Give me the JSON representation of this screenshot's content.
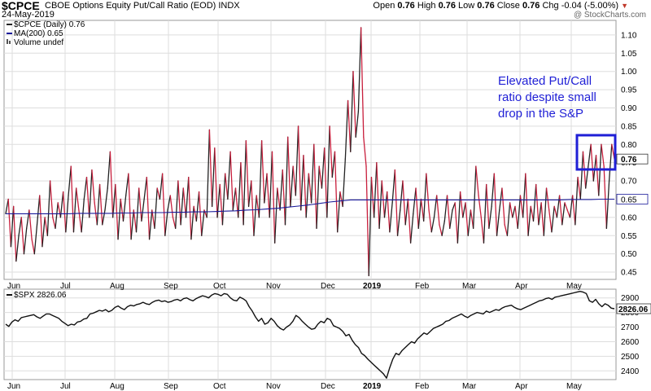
{
  "header": {
    "symbol": "$CPCE",
    "name": "CBOE Options Equity Put/Call Ratio (EOD)",
    "exchange": "INDX",
    "date": "24-May-2019",
    "open_label": "Open",
    "open": "0.76",
    "high_label": "High",
    "high": "0.76",
    "low_label": "Low",
    "low": "0.76",
    "close_label": "Close",
    "close": "0.76",
    "chg_label": "Chg",
    "chg": "-0.04 (-5.00%)",
    "watermark": "@ StockCharts.com"
  },
  "colors": {
    "up": "#222222",
    "down": "#c81e3c",
    "ma": "#1a1a9a",
    "spx": "#111111",
    "annotation": "#1f1fd6",
    "grid": "#dddddd"
  },
  "chart_data": [
    {
      "type": "line",
      "legend": [
        "$CPCE (Daily) 0.76",
        "MA(200) 0.65",
        "Volume undef"
      ],
      "x_ticks": [
        "Jun",
        "Jul",
        "Aug",
        "Sep",
        "Oct",
        "Nov",
        "Dec",
        "2019",
        "Feb",
        "Mar",
        "Apr",
        "May"
      ],
      "y_ticks": [
        "0.45",
        "0.50",
        "0.55",
        "0.60",
        "0.65",
        "0.70",
        "0.75",
        "0.80",
        "0.85",
        "0.90",
        "0.95",
        "1.00",
        "1.05",
        "1.10"
      ],
      "ylim": [
        0.43,
        1.14
      ],
      "last_label": "0.76",
      "ma_label": "0.65",
      "annotation": [
        "Elevated Put/Call",
        "ratio despite small",
        "drop in the S&P"
      ],
      "series": [
        {
          "values": [
            0.61,
            0.65,
            0.52,
            0.63,
            0.48,
            0.55,
            0.6,
            0.5,
            0.57,
            0.62,
            0.54,
            0.5,
            0.58,
            0.66,
            0.52,
            0.6,
            0.55,
            0.7,
            0.6,
            0.57,
            0.64,
            0.6,
            0.67,
            0.56,
            0.66,
            0.74,
            0.56,
            0.68,
            0.62,
            0.56,
            0.65,
            0.71,
            0.6,
            0.73,
            0.64,
            0.58,
            0.69,
            0.58,
            0.62,
            0.68,
            0.78,
            0.6,
            0.69,
            0.54,
            0.65,
            0.59,
            0.66,
            0.72,
            0.54,
            0.62,
            0.56,
            0.68,
            0.59,
            0.65,
            0.71,
            0.54,
            0.62,
            0.57,
            0.68,
            0.65,
            0.72,
            0.55,
            0.62,
            0.66,
            0.6,
            0.57,
            0.7,
            0.58,
            0.68,
            0.6,
            0.71,
            0.54,
            0.63,
            0.59,
            0.67,
            0.55,
            0.62,
            0.6,
            0.84,
            0.63,
            0.79,
            0.6,
            0.69,
            0.58,
            0.72,
            0.65,
            0.78,
            0.62,
            0.68,
            0.6,
            0.75,
            0.58,
            0.81,
            0.63,
            0.7,
            0.55,
            0.66,
            0.6,
            0.81,
            0.64,
            0.72,
            0.6,
            0.78,
            0.53,
            0.68,
            0.62,
            0.73,
            0.58,
            0.82,
            0.63,
            0.74,
            0.66,
            0.85,
            0.62,
            0.77,
            0.6,
            0.72,
            0.64,
            0.8,
            0.57,
            0.74,
            0.68,
            0.79,
            0.6,
            0.85,
            0.71,
            0.78,
            0.56,
            0.67,
            0.63,
            0.76,
            0.92,
            0.78,
            1.0,
            0.82,
            0.89,
            1.12,
            0.82,
            0.74,
            0.44,
            0.71,
            0.6,
            0.75,
            0.57,
            0.7,
            0.6,
            0.67,
            0.56,
            0.64,
            0.73,
            0.55,
            0.62,
            0.7,
            0.58,
            0.65,
            0.53,
            0.61,
            0.68,
            0.57,
            0.65,
            0.59,
            0.72,
            0.62,
            0.56,
            0.6,
            0.66,
            0.58,
            0.55,
            0.59,
            0.66,
            0.57,
            0.62,
            0.64,
            0.53,
            0.67,
            0.6,
            0.64,
            0.55,
            0.62,
            0.57,
            0.74,
            0.66,
            0.6,
            0.53,
            0.69,
            0.57,
            0.63,
            0.72,
            0.55,
            0.62,
            0.68,
            0.58,
            0.55,
            0.64,
            0.6,
            0.63,
            0.57,
            0.66,
            0.6,
            0.72,
            0.55,
            0.63,
            0.59,
            0.69,
            0.58,
            0.64,
            0.55,
            0.68,
            0.62,
            0.56,
            0.63,
            0.6,
            0.66,
            0.58,
            0.64,
            0.62,
            0.6,
            0.66,
            0.58,
            0.71,
            0.65,
            0.78,
            0.68,
            0.74,
            0.8,
            0.7,
            0.77,
            0.66,
            0.8,
            0.74,
            0.57,
            0.7,
            0.8,
            0.76
          ],
          "ma_values": [
            0.61,
            0.61,
            0.61,
            0.61,
            0.61,
            0.61,
            0.61,
            0.611,
            0.611,
            0.611,
            0.611,
            0.612,
            0.612,
            0.613,
            0.613,
            0.613,
            0.614,
            0.614,
            0.615,
            0.615,
            0.616,
            0.617,
            0.618,
            0.62,
            0.621,
            0.623,
            0.625,
            0.628,
            0.631,
            0.634,
            0.638,
            0.642,
            0.645,
            0.648,
            0.648,
            0.648,
            0.648,
            0.648,
            0.648,
            0.648,
            0.648,
            0.648,
            0.648,
            0.648,
            0.648,
            0.648,
            0.648,
            0.648,
            0.648,
            0.648,
            0.648,
            0.648,
            0.648,
            0.648,
            0.649,
            0.649,
            0.649,
            0.65,
            0.65,
            0.65,
            0.65
          ],
          "ma_step": 4
        }
      ]
    },
    {
      "type": "line",
      "legend": [
        "$SPX 2826.06"
      ],
      "x_ticks": [
        "Jun",
        "Jul",
        "Aug",
        "Sep",
        "Oct",
        "Nov",
        "Dec",
        "2019",
        "Feb",
        "Mar",
        "Apr",
        "May"
      ],
      "y_ticks": [
        "2400",
        "2500",
        "2600",
        "2700",
        "2800",
        "2900"
      ],
      "ylim": [
        2340,
        2960
      ],
      "last_label": "2826.06",
      "series": [
        {
          "values": [
            2720,
            2705,
            2735,
            2750,
            2740,
            2765,
            2770,
            2775,
            2780,
            2785,
            2770,
            2760,
            2775,
            2790,
            2790,
            2780,
            2770,
            2760,
            2740,
            2725,
            2710,
            2720,
            2715,
            2735,
            2740,
            2755,
            2760,
            2790,
            2795,
            2805,
            2815,
            2810,
            2820,
            2805,
            2815,
            2835,
            2845,
            2830,
            2820,
            2840,
            2850,
            2845,
            2855,
            2860,
            2870,
            2860,
            2855,
            2870,
            2880,
            2885,
            2875,
            2880,
            2870,
            2875,
            2885,
            2890,
            2880,
            2895,
            2900,
            2888,
            2880,
            2895,
            2905,
            2915,
            2910,
            2900,
            2920,
            2930,
            2925,
            2915,
            2930,
            2925,
            2900,
            2885,
            2880,
            2905,
            2895,
            2880,
            2840,
            2810,
            2770,
            2740,
            2760,
            2720,
            2730,
            2760,
            2740,
            2710,
            2690,
            2680,
            2700,
            2715,
            2740,
            2780,
            2765,
            2740,
            2720,
            2700,
            2685,
            2690,
            2720,
            2740,
            2730,
            2760,
            2750,
            2710,
            2700,
            2690,
            2670,
            2640,
            2650,
            2610,
            2580,
            2560,
            2520,
            2505,
            2480,
            2460,
            2440,
            2420,
            2400,
            2380,
            2350,
            2420,
            2480,
            2520,
            2510,
            2540,
            2560,
            2580,
            2600,
            2590,
            2620,
            2640,
            2660,
            2650,
            2670,
            2690,
            2700,
            2710,
            2720,
            2740,
            2745,
            2760,
            2770,
            2780,
            2790,
            2775,
            2765,
            2780,
            2790,
            2800,
            2795,
            2790,
            2810,
            2800,
            2810,
            2820,
            2815,
            2830,
            2840,
            2845,
            2850,
            2835,
            2825,
            2820,
            2830,
            2840,
            2850,
            2860,
            2870,
            2880,
            2885,
            2895,
            2900,
            2890,
            2905,
            2910,
            2915,
            2920,
            2925,
            2930,
            2935,
            2940,
            2945,
            2940,
            2930,
            2880,
            2870,
            2890,
            2860,
            2840,
            2860,
            2850,
            2830,
            2826
          ]
        }
      ]
    }
  ]
}
